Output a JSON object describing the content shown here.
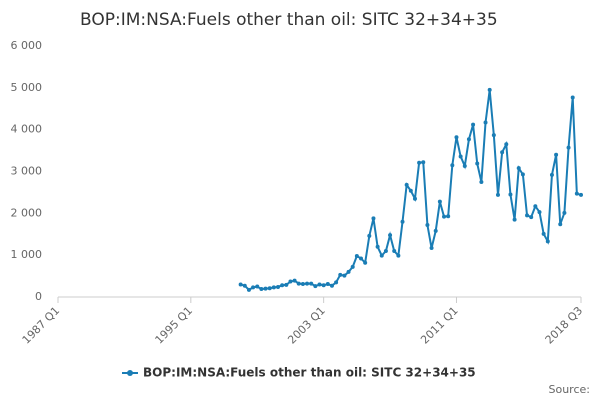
{
  "chart_data": {
    "type": "line",
    "title": "BOP:IM:NSA:Fuels other than oil: SITC 32+34+35",
    "source": "Source:",
    "categories": [
      "1987 Q1",
      null,
      null,
      null,
      null,
      null,
      null,
      null,
      null,
      null,
      null,
      null,
      null,
      null,
      null,
      null,
      null,
      null,
      null,
      null,
      null,
      null,
      null,
      null,
      null,
      null,
      null,
      null,
      null,
      null,
      null,
      null,
      "1995 Q1",
      null,
      null,
      null,
      null,
      null,
      null,
      null,
      null,
      null,
      null,
      null,
      null,
      null,
      null,
      null,
      null,
      null,
      null,
      null,
      null,
      null,
      null,
      null,
      null,
      null,
      null,
      null,
      null,
      null,
      null,
      null,
      "2003 Q1",
      null,
      null,
      null,
      null,
      null,
      null,
      null,
      null,
      null,
      null,
      null,
      null,
      null,
      null,
      null,
      null,
      null,
      null,
      null,
      null,
      null,
      null,
      null,
      null,
      null,
      null,
      null,
      null,
      null,
      null,
      null,
      "2011 Q1",
      null,
      null,
      null,
      null,
      null,
      null,
      null,
      null,
      null,
      null,
      null,
      null,
      null,
      null,
      null,
      null,
      null,
      null,
      null,
      null,
      null,
      null,
      null,
      null,
      null,
      null,
      null,
      null,
      null,
      "2018 Q3"
    ],
    "series": [
      {
        "name": "BOP:IM:NSA:Fuels other than oil: SITC 32+34+35",
        "color": "#1a7db5",
        "values": [
          null,
          null,
          null,
          null,
          null,
          null,
          null,
          null,
          null,
          null,
          null,
          null,
          null,
          null,
          null,
          null,
          null,
          null,
          null,
          null,
          null,
          null,
          null,
          null,
          null,
          null,
          null,
          null,
          null,
          null,
          null,
          null,
          null,
          null,
          null,
          null,
          null,
          null,
          null,
          null,
          null,
          null,
          null,
          null,
          300,
          270,
          170,
          230,
          250,
          190,
          200,
          210,
          230,
          240,
          280,
          290,
          370,
          390,
          320,
          310,
          320,
          320,
          260,
          300,
          280,
          310,
          270,
          350,
          530,
          510,
          600,
          720,
          980,
          920,
          820,
          1460,
          1880,
          1200,
          990,
          1100,
          1480,
          1100,
          990,
          1800,
          2680,
          2540,
          2350,
          3210,
          3220,
          1720,
          1170,
          1580,
          2280,
          1920,
          1930,
          3150,
          3820,
          3360,
          3130,
          3770,
          4120,
          3190,
          2750,
          4170,
          4950,
          3870,
          2440,
          3460,
          3650,
          2450,
          1850,
          3080,
          2930,
          1950,
          1910,
          2170,
          2030,
          1510,
          1330,
          2920,
          3400,
          1740,
          2010,
          3570,
          4770,
          2470,
          2440
        ]
      }
    ],
    "ylim": [
      0,
      6000
    ],
    "yticks": [
      0,
      {
        "value": 1000,
        "label": "1 000"
      },
      {
        "value": 2000,
        "label": "2 000"
      },
      {
        "value": 3000,
        "label": "3 000"
      },
      {
        "value": 4000,
        "label": "4 000"
      },
      {
        "value": 5000,
        "label": "5 000"
      },
      {
        "value": 6000,
        "label": "6 000"
      }
    ],
    "grid": false
  }
}
